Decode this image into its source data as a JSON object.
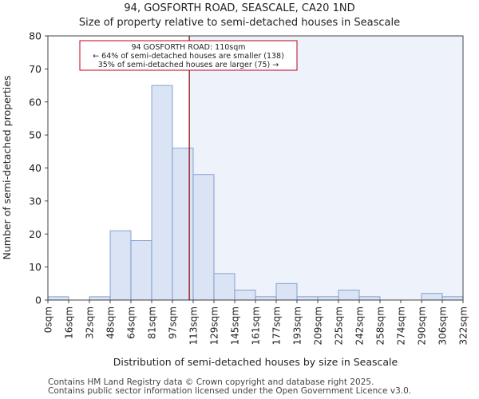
{
  "chart_data": {
    "type": "bar",
    "title": "94, GOSFORTH ROAD, SEASCALE, CA20 1ND",
    "subtitle": "Size of property relative to semi-detached houses in Seascale",
    "xlabel": "Distribution of semi-detached houses by size in Seascale",
    "ylabel": "Number of semi-detached properties",
    "bin_edges": [
      0,
      16,
      32,
      48,
      64,
      81,
      97,
      113,
      129,
      145,
      161,
      177,
      193,
      209,
      225,
      242,
      258,
      274,
      290,
      306,
      322
    ],
    "tick_labels": [
      "0sqm",
      "16sqm",
      "32sqm",
      "48sqm",
      "64sqm",
      "81sqm",
      "97sqm",
      "113sqm",
      "129sqm",
      "145sqm",
      "161sqm",
      "177sqm",
      "193sqm",
      "209sqm",
      "225sqm",
      "242sqm",
      "258sqm",
      "274sqm",
      "290sqm",
      "306sqm",
      "322sqm"
    ],
    "values": [
      1,
      0,
      1,
      21,
      18,
      65,
      46,
      38,
      8,
      3,
      1,
      5,
      1,
      1,
      3,
      1,
      0,
      0,
      2,
      1
    ],
    "ylim": [
      0,
      80
    ],
    "yticks": [
      0,
      10,
      20,
      30,
      40,
      50,
      60,
      70,
      80
    ],
    "property_size": 110,
    "annotation": {
      "line1": "94 GOSFORTH ROAD: 110sqm",
      "line2": "← 64% of semi-detached houses are smaller (138)",
      "line3": "35% of semi-detached houses are larger (75) →"
    },
    "colors": {
      "bar_fill": "#dae4f5",
      "bar_edge": "#6f8fc6",
      "marker_line": "#8b0000",
      "highlight_bg": "#eef2fb",
      "annotation_border": "#c0001a"
    }
  },
  "footer": {
    "line1": "Contains HM Land Registry data © Crown copyright and database right 2025.",
    "line2": "Contains public sector information licensed under the Open Government Licence v3.0."
  }
}
